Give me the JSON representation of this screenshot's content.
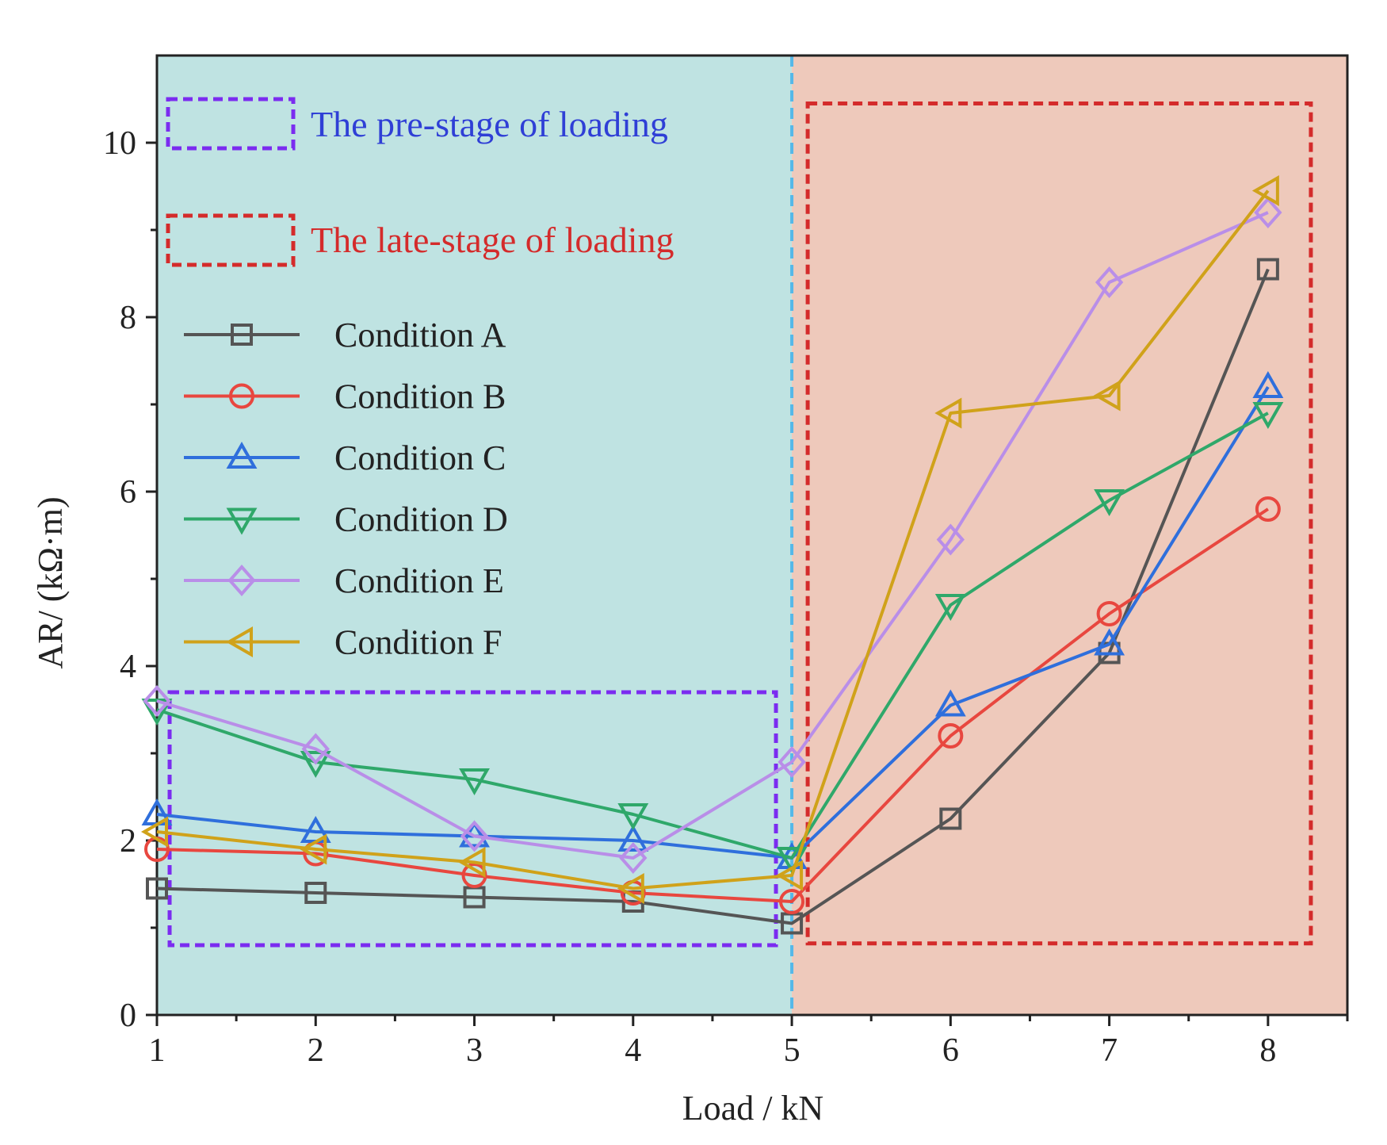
{
  "chart_data": {
    "type": "line",
    "title": "",
    "xlabel": "Load / kN",
    "ylabel": "AR/ (kΩ·m)",
    "x": [
      1,
      2,
      3,
      4,
      5,
      6,
      7,
      8
    ],
    "xlim": [
      1,
      8.5
    ],
    "ylim": [
      0,
      11
    ],
    "xticks": [
      "1",
      "2",
      "3",
      "4",
      "5",
      "6",
      "7",
      "8"
    ],
    "yticks": [
      "0",
      "2",
      "4",
      "6",
      "8",
      "10"
    ],
    "grid": false,
    "regions": [
      {
        "label": "The pre-stage of loading",
        "x_range": [
          1,
          5
        ],
        "fill": "#bfe3e2",
        "box_color": "#7b2cf0",
        "text_color": "#2f3fd6",
        "box_x": [
          1.08,
          4.9
        ],
        "box_y": [
          0.8,
          3.7
        ]
      },
      {
        "label": "The late-stage of loading",
        "x_range": [
          5,
          8.5
        ],
        "fill": "#eec9bb",
        "box_color": "#d42b2b",
        "text_color": "#d42b2b",
        "box_x": [
          5.1,
          8.27
        ],
        "box_y": [
          0.82,
          10.45
        ]
      }
    ],
    "divider": {
      "x": 5,
      "color": "#55b8e8"
    },
    "legend_position": "top-left",
    "series": [
      {
        "name": "Condition A",
        "marker": "square",
        "color": "#555555",
        "values": [
          1.45,
          1.4,
          1.35,
          1.3,
          1.05,
          2.25,
          4.15,
          8.55
        ]
      },
      {
        "name": "Condition B",
        "marker": "circle",
        "color": "#e8473f",
        "values": [
          1.9,
          1.85,
          1.6,
          1.4,
          1.3,
          3.2,
          4.6,
          5.8
        ]
      },
      {
        "name": "Condition C",
        "marker": "triangle-up",
        "color": "#2f6fdc",
        "values": [
          2.3,
          2.1,
          2.05,
          2.0,
          1.8,
          3.55,
          4.25,
          7.2
        ]
      },
      {
        "name": "Condition D",
        "marker": "triangle-down",
        "color": "#2fa86a",
        "values": [
          3.5,
          2.9,
          2.7,
          2.3,
          1.8,
          4.7,
          5.9,
          6.9
        ]
      },
      {
        "name": "Condition E",
        "marker": "diamond",
        "color": "#b98ee8",
        "values": [
          3.6,
          3.05,
          2.05,
          1.8,
          2.9,
          5.45,
          8.4,
          9.2
        ]
      },
      {
        "name": "Condition F",
        "marker": "triangle-left",
        "color": "#d0a21a",
        "values": [
          2.1,
          1.9,
          1.75,
          1.45,
          1.6,
          6.9,
          7.1,
          9.45
        ]
      }
    ]
  }
}
